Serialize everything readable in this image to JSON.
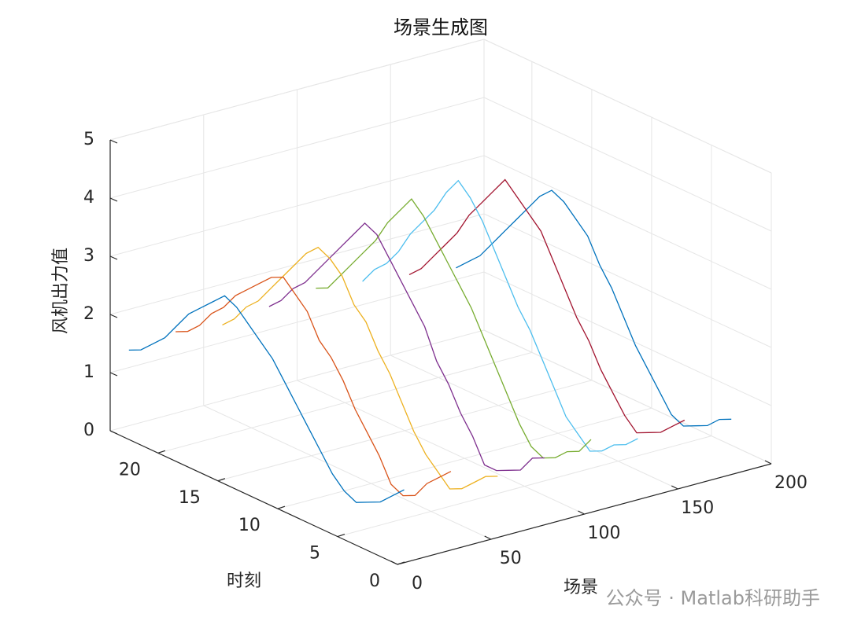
{
  "chart_data": {
    "type": "line3d",
    "title": "场景生成图",
    "x_label": "场景",
    "y_label": "时刻",
    "z_label": "风机出力值",
    "xlim": [
      0,
      200
    ],
    "xticks": [
      0,
      50,
      100,
      150,
      200
    ],
    "ylim": [
      0,
      24
    ],
    "yticks": [
      0,
      5,
      10,
      15,
      20
    ],
    "zlim": [
      0,
      5
    ],
    "zticks": [
      0,
      1,
      2,
      3,
      4,
      5
    ],
    "grid": true,
    "hours": [
      1,
      2,
      3,
      4,
      5,
      6,
      7,
      8,
      9,
      10,
      11,
      12,
      13,
      14,
      15,
      16,
      17,
      18,
      19,
      20,
      21,
      22,
      23,
      24
    ],
    "series": [
      {
        "scenario": 10,
        "color": "#0072bd",
        "values": [
          1.1,
          0.9,
          0.7,
          0.6,
          0.5,
          0.6,
          0.8,
          1.1,
          1.4,
          1.7,
          2.0,
          2.3,
          2.5,
          2.7,
          2.9,
          3.0,
          2.8,
          2.6,
          2.4,
          2.1,
          1.8,
          1.6,
          1.4,
          1.3
        ]
      },
      {
        "scenario": 35,
        "color": "#d95319",
        "values": [
          1.2,
          1.0,
          0.8,
          0.5,
          0.4,
          0.5,
          0.9,
          1.2,
          1.5,
          1.9,
          2.2,
          2.4,
          2.8,
          3.0,
          3.2,
          3.1,
          2.9,
          2.7,
          2.5,
          2.2,
          2.0,
          1.7,
          1.5,
          1.4
        ]
      },
      {
        "scenario": 60,
        "color": "#edb120",
        "values": [
          0.9,
          0.8,
          0.6,
          0.4,
          0.3,
          0.5,
          0.7,
          1.0,
          1.4,
          1.8,
          2.1,
          2.5,
          2.7,
          3.1,
          3.3,
          3.4,
          3.2,
          2.9,
          2.6,
          2.3,
          2.0,
          1.8,
          1.5,
          1.3
        ]
      },
      {
        "scenario": 85,
        "color": "#7e2f8e",
        "values": [
          1.0,
          0.9,
          0.6,
          0.5,
          0.4,
          0.4,
          0.8,
          1.1,
          1.5,
          1.8,
          2.3,
          2.6,
          2.9,
          3.2,
          3.5,
          3.6,
          3.3,
          3.0,
          2.7,
          2.4,
          2.1,
          1.9,
          1.6,
          1.4
        ]
      },
      {
        "scenario": 110,
        "color": "#77ac30",
        "values": [
          1.1,
          0.8,
          0.7,
          0.5,
          0.4,
          0.5,
          0.8,
          1.2,
          1.6,
          2.0,
          2.4,
          2.7,
          3.0,
          3.3,
          3.6,
          3.8,
          3.5,
          3.2,
          2.8,
          2.5,
          2.2,
          1.9,
          1.6,
          1.5
        ]
      },
      {
        "scenario": 135,
        "color": "#4dbeee",
        "values": [
          0.9,
          0.7,
          0.6,
          0.4,
          0.3,
          0.5,
          0.7,
          1.1,
          1.5,
          1.9,
          2.2,
          2.6,
          3.0,
          3.4,
          3.7,
          3.9,
          3.6,
          3.2,
          2.9,
          2.6,
          2.2,
          1.9,
          1.7,
          1.4
        ]
      },
      {
        "scenario": 160,
        "color": "#a2142f",
        "values": [
          1.0,
          0.8,
          0.6,
          0.5,
          0.4,
          0.6,
          0.9,
          1.2,
          1.6,
          1.9,
          2.3,
          2.7,
          3.1,
          3.3,
          3.5,
          3.7,
          3.4,
          3.1,
          2.8,
          2.4,
          2.1,
          1.8,
          1.5,
          1.3
        ]
      },
      {
        "scenario": 185,
        "color": "#0072bd",
        "values": [
          0.8,
          0.7,
          0.5,
          0.4,
          0.3,
          0.4,
          0.7,
          1.0,
          1.3,
          1.7,
          2.1,
          2.4,
          2.8,
          3.0,
          3.2,
          3.3,
          3.1,
          2.8,
          2.5,
          2.2,
          1.9,
          1.6,
          1.4,
          1.2
        ]
      }
    ],
    "watermark": "公众号 · Matlab科研助手"
  }
}
